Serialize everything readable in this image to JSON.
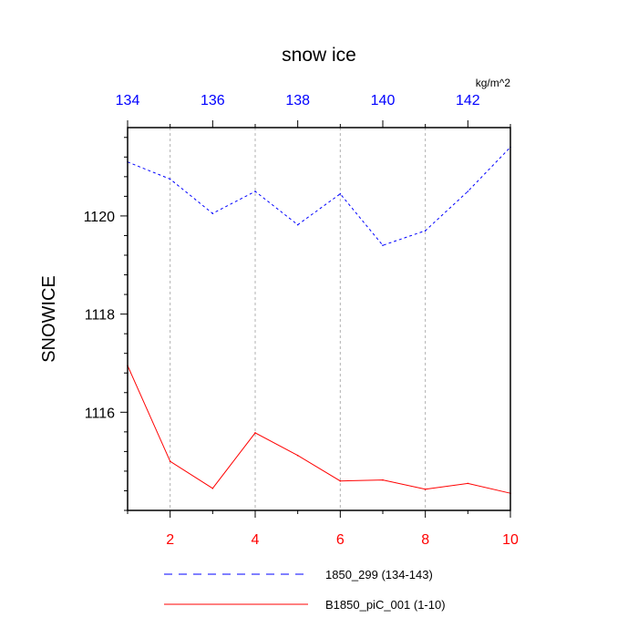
{
  "chart_data": {
    "type": "line",
    "title": "snow ice",
    "ylabel": "SNOWICE",
    "units": "kg/m^2",
    "ylim": [
      1114.0,
      1121.8
    ],
    "yticks": [
      1116,
      1118,
      1120
    ],
    "x_bottom": {
      "range": [
        1,
        10
      ],
      "ticks": [
        2,
        4,
        6,
        8,
        10
      ],
      "color": "#ff0000"
    },
    "x_top": {
      "range": [
        134,
        143
      ],
      "ticks": [
        134,
        136,
        138,
        140,
        142
      ],
      "color": "#0000ff"
    },
    "grid": "vertical-dashed",
    "series": [
      {
        "name": "1850_299 (134-143)",
        "axis": "top",
        "color": "#0000ff",
        "style": "dashed",
        "x": [
          134,
          135,
          136,
          137,
          138,
          139,
          140,
          141,
          142,
          143
        ],
        "values": [
          1121.1,
          1120.75,
          1120.05,
          1120.5,
          1119.82,
          1120.45,
          1119.4,
          1119.7,
          1120.5,
          1121.4
        ]
      },
      {
        "name": "B1850_piC_001 (1-10)",
        "axis": "bottom",
        "color": "#ff0000",
        "style": "solid",
        "x": [
          1,
          2,
          3,
          4,
          5,
          6,
          7,
          8,
          9,
          10
        ],
        "values": [
          1116.95,
          1115.0,
          1114.45,
          1115.58,
          1115.12,
          1114.6,
          1114.62,
          1114.43,
          1114.55,
          1114.35
        ]
      }
    ],
    "legend_position": "bottom"
  }
}
